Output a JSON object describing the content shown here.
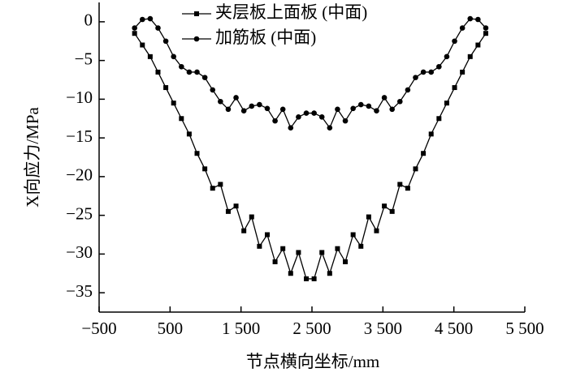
{
  "chart_data": {
    "type": "line",
    "xlabel": "节点横向坐标/mm",
    "ylabel": "X向应力/MPa",
    "x": [
      0,
      110,
      220,
      330,
      440,
      550,
      660,
      770,
      880,
      990,
      1100,
      1210,
      1320,
      1430,
      1540,
      1650,
      1760,
      1870,
      1980,
      2090,
      2200,
      2310,
      2420,
      2530,
      2640,
      2750,
      2860,
      2970,
      3080,
      3190,
      3300,
      3410,
      3520,
      3630,
      3740,
      3850,
      3960,
      4070,
      4180,
      4290,
      4400,
      4510,
      4620,
      4730,
      4840,
      4950
    ],
    "series": [
      {
        "name": "夹层板上面板 (中面)",
        "color": "#000000",
        "marker": "square",
        "values": [
          -1.5,
          -3,
          -4.5,
          -6.5,
          -8.5,
          -10.5,
          -12.5,
          -14.5,
          -17,
          -19,
          -21.5,
          -21,
          -24.5,
          -23.8,
          -27,
          -25.2,
          -29,
          -27.5,
          -31,
          -29.3,
          -32.5,
          -29.8,
          -33.2,
          -33.2,
          -29.8,
          -32.5,
          -29.3,
          -31,
          -27.5,
          -29,
          -25.2,
          -27,
          -23.8,
          -24.5,
          -21,
          -21.5,
          -19,
          -17,
          -14.5,
          -12.5,
          -10.5,
          -8.5,
          -6.5,
          -4.5,
          -3,
          -1.5
        ]
      },
      {
        "name": "加筋板 (中面)",
        "color": "#000000",
        "marker": "circle",
        "values": [
          -0.8,
          0.3,
          0.4,
          -0.8,
          -2.5,
          -4.5,
          -5.8,
          -6.5,
          -6.5,
          -7.2,
          -8.8,
          -10.3,
          -11.3,
          -9.8,
          -11.5,
          -10.9,
          -10.7,
          -11.2,
          -12.8,
          -11.3,
          -13.7,
          -12.3,
          -11.8,
          -11.8,
          -12.3,
          -13.7,
          -11.3,
          -12.8,
          -11.2,
          -10.7,
          -10.9,
          -11.5,
          -9.8,
          -11.3,
          -10.3,
          -8.8,
          -7.2,
          -6.5,
          -6.5,
          -5.8,
          -4.5,
          -2.5,
          -0.8,
          0.4,
          0.3,
          -0.8
        ]
      }
    ],
    "xlim": [
      -500,
      5500
    ],
    "xticks": [
      {
        "value": -500,
        "label": "−500"
      },
      {
        "value": 500,
        "label": "500"
      },
      {
        "value": 1500,
        "label": "1 500"
      },
      {
        "value": 2500,
        "label": "2 500"
      },
      {
        "value": 3500,
        "label": "3 500"
      },
      {
        "value": 4500,
        "label": "4 500"
      },
      {
        "value": 5500,
        "label": "5 500"
      }
    ],
    "ylim": [
      -37.5,
      2.5
    ],
    "yticks": [
      0,
      {
        "value": -5,
        "label": "−5"
      },
      {
        "value": -10,
        "label": "−10"
      },
      {
        "value": -15,
        "label": "−15"
      },
      {
        "value": -20,
        "label": "−20"
      },
      {
        "value": -25,
        "label": "−25"
      },
      {
        "value": -30,
        "label": "−30"
      },
      {
        "value": -35,
        "label": "−35"
      }
    ],
    "legend": "top-center"
  }
}
